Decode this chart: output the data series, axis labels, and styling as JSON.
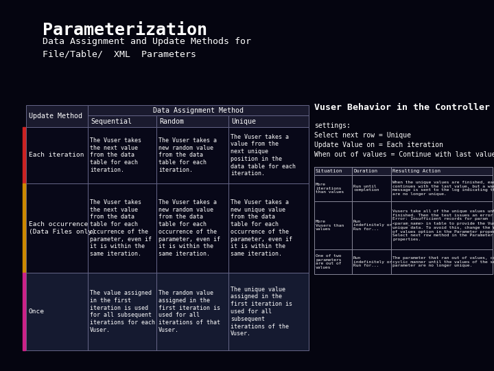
{
  "title": "Parameterization",
  "subtitle": "Data Assignment and Update Methods for\nFile/Table/  XML  Parameters",
  "bg_color": "#050510",
  "title_color": "#ffffff",
  "subtitle_color": "#ffffff",
  "table_header_bg": "#1a1a2e",
  "table_cell_bg_dark": "#080818",
  "table_cell_bg_medium": "#151a30",
  "table_border_color": "#666688",
  "right_table_bg": "#1a1a2e",
  "right_table_border": "#888899",
  "left_bar_colors": [
    "#cc2222",
    "#cc8800",
    "#cc2288"
  ],
  "rows": [
    {
      "method": "Each iteration",
      "sequential": "The Vuser takes\nthe next value\nfrom the data\ntable for each\niteration.",
      "random": "The Vuser takes a\nnew random value\nfrom the data\ntable for each\niteration.",
      "unique": "The Vuser takes a\nvalue from the\nnext unique\nposition in the\ndata table for each\niteration."
    },
    {
      "method": "Each occurrence\n(Data Files only)",
      "sequential": "The Vuser takes\nthe next value\nfrom the data\ntable for each\noccurrence of the\nparameter, even if\nit is within the\nsame iteration.",
      "random": "The Vuser takes a\nnew random value\nfrom the data\ntable for each\noccurrence of the\nparameter, even if\nit is within the\nsame iteration.",
      "unique": "The Vuser takes a\nnew unique value\nfrom the data\ntable for each\noccurrence of the\nparameter, even if\nit is within the\nsame iteration."
    },
    {
      "method": "Once",
      "sequential": "The value assigned\nin the first\niteration is used\nfor all subsequent\niterations for each\nVuser.",
      "random": "The random value\nassigned in the\nfirst iteration is\nused for all\niterations of that\nVuser.",
      "unique": "The unique value\nassigned in the\nfirst iteration is\nused for all\nsubsequent\niterations of the\nVuser."
    }
  ],
  "vuser_title": "Vuser Behavior in the Controller",
  "vuser_settings": "settings:\nSelect next row = Unique\nUpdate Value on = Each iteration\nWhen out of values = Continue with last value",
  "vuser_table_headers": [
    "Situation",
    "Duration",
    "Resulting Action"
  ],
  "vuser_table_rows": [
    {
      "situation": "More\niterations\nthan values",
      "duration": "Run until\ncompletion",
      "action": "When the unique values are finished, each Vuser\ncontinues with the last value, but a warning\nmessage is sent to the log indicating that the values\nare no longer unique."
    },
    {
      "situation": "More\nVusers than\nvalues",
      "duration": "Run\nindefinitely or\nRun for...",
      "action": "Vusers take all of the unique values until they are\nfinished. Then the test issues an error message\nError: Insufficient records for param\n<param_name> in table to provide the Vuser with\nunique data. To avoid this, change the When out\nof values option in the Parameter properties or the\nSelect next row method in the Parameter\nproperties."
    },
    {
      "situation": "One of two\nparameters\nare out of\nvalues",
      "duration": "Run\nindefinitely or\nRun for...",
      "action": "The parameter that ran out of values, continues in a\ncyclic manner until the values of the second\nparameter are no longer unique."
    }
  ]
}
